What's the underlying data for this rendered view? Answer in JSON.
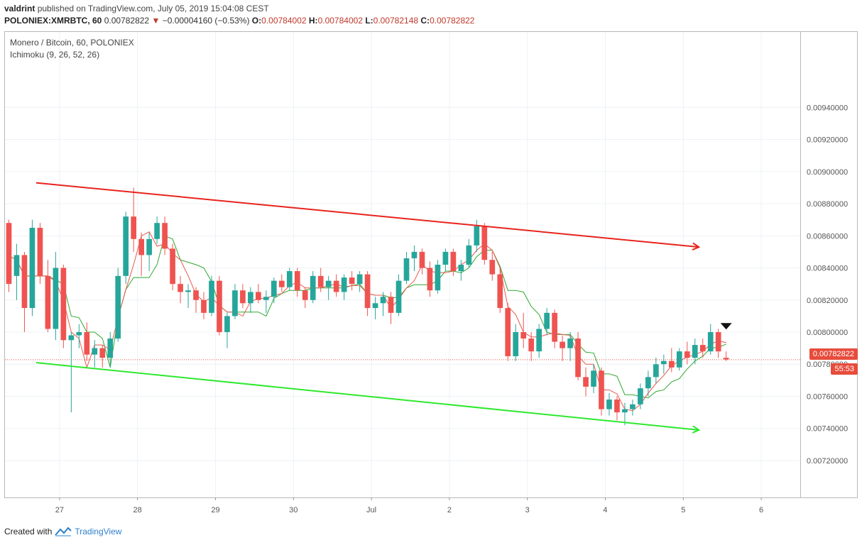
{
  "header": {
    "author": "valdrint",
    "published_text": "published on TradingView.com, July 05, 2019 15:04:08 CEST",
    "symbol": "POLONIEX:XMRBTC, 60",
    "last": "0.00782822",
    "change": "−0.00004160 (−0.53%)",
    "o_label": "O:",
    "o_value": "0.00784002",
    "h_label": "H:",
    "h_value": "0.00784002",
    "l_label": "L:",
    "l_value": "0.00782148",
    "c_label": "C:",
    "c_value": "0.00782822"
  },
  "legend": {
    "pair": "Monero / Bitcoin, 60, POLONIEX",
    "indicator": "Ichimoku (9, 26, 52, 26)"
  },
  "price_tag": {
    "value": "0.00782822",
    "countdown": "55:53",
    "color": "#e74c3c"
  },
  "footer": {
    "created_with": "Created with",
    "brand": "TradingView"
  },
  "colors": {
    "up": "#26a69a",
    "down": "#ef5350",
    "resistance": "#e8231d",
    "support": "#2ee82e",
    "conversion": "#e8584d",
    "base": "#2fa82f",
    "grid": "#edf1f6",
    "axis_text": "#555555"
  },
  "chart_data": {
    "type": "candlestick",
    "y_ticks": [
      "0.00720000",
      "0.00740000",
      "0.00760000",
      "0.00780000",
      "0.00800000",
      "0.00820000",
      "0.00840000",
      "0.00860000",
      "0.00880000",
      "0.00900000",
      "0.00920000",
      "0.00940000"
    ],
    "x_ticks": [
      "27",
      "28",
      "29",
      "30",
      "Jul",
      "2",
      "3",
      "4",
      "5",
      "6"
    ],
    "ylim": [
      0.00697,
      0.00987
    ],
    "x_domain_days": [
      26.3,
      36.5
    ],
    "x_ticks_days": [
      27,
      28,
      29,
      30,
      31,
      32,
      33,
      34,
      35,
      36
    ],
    "resistance_line": {
      "from": [
        26.7,
        0.00893
      ],
      "to": [
        35.2,
        0.00853
      ]
    },
    "support_line": {
      "from": [
        26.7,
        0.00781
      ],
      "to": [
        35.2,
        0.00739
      ]
    },
    "current_price": 0.00782822,
    "marker": {
      "x": 35.55,
      "y": 0.00803,
      "shape": "down-triangle"
    },
    "candles": [
      {
        "x": 26.35,
        "o": 0.00868,
        "h": 0.0087,
        "l": 0.00825,
        "c": 0.0083
      },
      {
        "x": 26.45,
        "o": 0.00835,
        "h": 0.00855,
        "l": 0.0082,
        "c": 0.00848
      },
      {
        "x": 26.55,
        "o": 0.00848,
        "h": 0.0085,
        "l": 0.008,
        "c": 0.00815
      },
      {
        "x": 26.65,
        "o": 0.00815,
        "h": 0.0087,
        "l": 0.0081,
        "c": 0.00865
      },
      {
        "x": 26.75,
        "o": 0.00865,
        "h": 0.00868,
        "l": 0.0083,
        "c": 0.00835
      },
      {
        "x": 26.85,
        "o": 0.00835,
        "h": 0.00845,
        "l": 0.008,
        "c": 0.00802
      },
      {
        "x": 26.95,
        "o": 0.00802,
        "h": 0.0085,
        "l": 0.00795,
        "c": 0.0084
      },
      {
        "x": 27.05,
        "o": 0.0084,
        "h": 0.00842,
        "l": 0.0079,
        "c": 0.00795
      },
      {
        "x": 27.15,
        "o": 0.00795,
        "h": 0.008,
        "l": 0.0075,
        "c": 0.00798
      },
      {
        "x": 27.25,
        "o": 0.00798,
        "h": 0.00805,
        "l": 0.0079,
        "c": 0.008
      },
      {
        "x": 27.35,
        "o": 0.008,
        "h": 0.00806,
        "l": 0.00782,
        "c": 0.00786
      },
      {
        "x": 27.45,
        "o": 0.00786,
        "h": 0.00795,
        "l": 0.00778,
        "c": 0.0079
      },
      {
        "x": 27.55,
        "o": 0.0079,
        "h": 0.00792,
        "l": 0.00778,
        "c": 0.00784
      },
      {
        "x": 27.65,
        "o": 0.00784,
        "h": 0.008,
        "l": 0.00778,
        "c": 0.00796
      },
      {
        "x": 27.75,
        "o": 0.00796,
        "h": 0.0084,
        "l": 0.00794,
        "c": 0.00835
      },
      {
        "x": 27.85,
        "o": 0.00835,
        "h": 0.00875,
        "l": 0.0083,
        "c": 0.00872
      },
      {
        "x": 27.95,
        "o": 0.00872,
        "h": 0.0089,
        "l": 0.0085,
        "c": 0.00858
      },
      {
        "x": 28.05,
        "o": 0.00858,
        "h": 0.00862,
        "l": 0.00835,
        "c": 0.00848
      },
      {
        "x": 28.15,
        "o": 0.00848,
        "h": 0.00862,
        "l": 0.00838,
        "c": 0.00858
      },
      {
        "x": 28.25,
        "o": 0.00858,
        "h": 0.00872,
        "l": 0.00855,
        "c": 0.00868
      },
      {
        "x": 28.35,
        "o": 0.00868,
        "h": 0.00872,
        "l": 0.00848,
        "c": 0.00852
      },
      {
        "x": 28.45,
        "o": 0.00852,
        "h": 0.00855,
        "l": 0.00826,
        "c": 0.0083
      },
      {
        "x": 28.55,
        "o": 0.0083,
        "h": 0.00835,
        "l": 0.00818,
        "c": 0.00825
      },
      {
        "x": 28.65,
        "o": 0.00825,
        "h": 0.0083,
        "l": 0.00815,
        "c": 0.00826
      },
      {
        "x": 28.75,
        "o": 0.00826,
        "h": 0.00828,
        "l": 0.00812,
        "c": 0.0082
      },
      {
        "x": 28.85,
        "o": 0.0082,
        "h": 0.00825,
        "l": 0.00808,
        "c": 0.00812
      },
      {
        "x": 28.95,
        "o": 0.00812,
        "h": 0.00835,
        "l": 0.0081,
        "c": 0.00832
      },
      {
        "x": 29.05,
        "o": 0.00832,
        "h": 0.00835,
        "l": 0.00798,
        "c": 0.008
      },
      {
        "x": 29.15,
        "o": 0.008,
        "h": 0.00812,
        "l": 0.0079,
        "c": 0.0081
      },
      {
        "x": 29.25,
        "o": 0.0081,
        "h": 0.0083,
        "l": 0.00808,
        "c": 0.00826
      },
      {
        "x": 29.35,
        "o": 0.00826,
        "h": 0.0083,
        "l": 0.00815,
        "c": 0.00818
      },
      {
        "x": 29.45,
        "o": 0.00818,
        "h": 0.00828,
        "l": 0.00812,
        "c": 0.00825
      },
      {
        "x": 29.55,
        "o": 0.00825,
        "h": 0.0083,
        "l": 0.00818,
        "c": 0.0082
      },
      {
        "x": 29.65,
        "o": 0.0082,
        "h": 0.00826,
        "l": 0.00812,
        "c": 0.00822
      },
      {
        "x": 29.75,
        "o": 0.00822,
        "h": 0.00834,
        "l": 0.00818,
        "c": 0.00832
      },
      {
        "x": 29.85,
        "o": 0.00832,
        "h": 0.00836,
        "l": 0.00825,
        "c": 0.00828
      },
      {
        "x": 29.95,
        "o": 0.00828,
        "h": 0.0084,
        "l": 0.00826,
        "c": 0.00838
      },
      {
        "x": 30.05,
        "o": 0.00838,
        "h": 0.0084,
        "l": 0.00822,
        "c": 0.00826
      },
      {
        "x": 30.15,
        "o": 0.00826,
        "h": 0.00828,
        "l": 0.00815,
        "c": 0.0082
      },
      {
        "x": 30.25,
        "o": 0.0082,
        "h": 0.00838,
        "l": 0.00818,
        "c": 0.00835
      },
      {
        "x": 30.35,
        "o": 0.00835,
        "h": 0.0084,
        "l": 0.00825,
        "c": 0.00828
      },
      {
        "x": 30.45,
        "o": 0.00828,
        "h": 0.00835,
        "l": 0.0082,
        "c": 0.00832
      },
      {
        "x": 30.55,
        "o": 0.00832,
        "h": 0.00836,
        "l": 0.00822,
        "c": 0.00825
      },
      {
        "x": 30.65,
        "o": 0.00825,
        "h": 0.00836,
        "l": 0.0082,
        "c": 0.00834
      },
      {
        "x": 30.75,
        "o": 0.00834,
        "h": 0.00838,
        "l": 0.00826,
        "c": 0.0083
      },
      {
        "x": 30.85,
        "o": 0.0083,
        "h": 0.00838,
        "l": 0.00825,
        "c": 0.00836
      },
      {
        "x": 30.95,
        "o": 0.00836,
        "h": 0.00838,
        "l": 0.0081,
        "c": 0.00815
      },
      {
        "x": 31.05,
        "o": 0.00815,
        "h": 0.00822,
        "l": 0.00808,
        "c": 0.00818
      },
      {
        "x": 31.15,
        "o": 0.00818,
        "h": 0.00825,
        "l": 0.0081,
        "c": 0.00822
      },
      {
        "x": 31.25,
        "o": 0.00822,
        "h": 0.00825,
        "l": 0.00805,
        "c": 0.00812
      },
      {
        "x": 31.35,
        "o": 0.00812,
        "h": 0.00836,
        "l": 0.0081,
        "c": 0.00832
      },
      {
        "x": 31.45,
        "o": 0.00832,
        "h": 0.0085,
        "l": 0.0083,
        "c": 0.00846
      },
      {
        "x": 31.55,
        "o": 0.00846,
        "h": 0.00854,
        "l": 0.00838,
        "c": 0.0085
      },
      {
        "x": 31.65,
        "o": 0.0085,
        "h": 0.00852,
        "l": 0.00836,
        "c": 0.0084
      },
      {
        "x": 31.75,
        "o": 0.0084,
        "h": 0.00844,
        "l": 0.00822,
        "c": 0.00826
      },
      {
        "x": 31.85,
        "o": 0.00826,
        "h": 0.00845,
        "l": 0.00824,
        "c": 0.00842
      },
      {
        "x": 31.95,
        "o": 0.00842,
        "h": 0.00852,
        "l": 0.00838,
        "c": 0.0085
      },
      {
        "x": 32.05,
        "o": 0.0085,
        "h": 0.00852,
        "l": 0.00835,
        "c": 0.00838
      },
      {
        "x": 32.15,
        "o": 0.00838,
        "h": 0.00845,
        "l": 0.00832,
        "c": 0.00842
      },
      {
        "x": 32.25,
        "o": 0.00842,
        "h": 0.00858,
        "l": 0.0084,
        "c": 0.00854
      },
      {
        "x": 32.35,
        "o": 0.00854,
        "h": 0.0087,
        "l": 0.0085,
        "c": 0.00866
      },
      {
        "x": 32.45,
        "o": 0.00866,
        "h": 0.00868,
        "l": 0.00842,
        "c": 0.00845
      },
      {
        "x": 32.55,
        "o": 0.00845,
        "h": 0.0085,
        "l": 0.00832,
        "c": 0.00836
      },
      {
        "x": 32.65,
        "o": 0.00836,
        "h": 0.0084,
        "l": 0.00812,
        "c": 0.00815
      },
      {
        "x": 32.75,
        "o": 0.00815,
        "h": 0.00818,
        "l": 0.00782,
        "c": 0.00785
      },
      {
        "x": 32.85,
        "o": 0.00785,
        "h": 0.00805,
        "l": 0.00782,
        "c": 0.008
      },
      {
        "x": 32.95,
        "o": 0.008,
        "h": 0.00812,
        "l": 0.0079,
        "c": 0.00796
      },
      {
        "x": 33.05,
        "o": 0.00796,
        "h": 0.008,
        "l": 0.00782,
        "c": 0.00788
      },
      {
        "x": 33.15,
        "o": 0.00788,
        "h": 0.00805,
        "l": 0.00784,
        "c": 0.00802
      },
      {
        "x": 33.25,
        "o": 0.00802,
        "h": 0.00815,
        "l": 0.00798,
        "c": 0.00812
      },
      {
        "x": 33.35,
        "o": 0.00812,
        "h": 0.00814,
        "l": 0.0079,
        "c": 0.00794
      },
      {
        "x": 33.45,
        "o": 0.00794,
        "h": 0.00798,
        "l": 0.00782,
        "c": 0.0079
      },
      {
        "x": 33.55,
        "o": 0.0079,
        "h": 0.008,
        "l": 0.00782,
        "c": 0.00796
      },
      {
        "x": 33.65,
        "o": 0.00796,
        "h": 0.008,
        "l": 0.0077,
        "c": 0.00772
      },
      {
        "x": 33.75,
        "o": 0.00772,
        "h": 0.00778,
        "l": 0.0076,
        "c": 0.00766
      },
      {
        "x": 33.85,
        "o": 0.00766,
        "h": 0.0078,
        "l": 0.00762,
        "c": 0.00776
      },
      {
        "x": 33.95,
        "o": 0.00776,
        "h": 0.00778,
        "l": 0.00748,
        "c": 0.00752
      },
      {
        "x": 34.05,
        "o": 0.00752,
        "h": 0.00762,
        "l": 0.00748,
        "c": 0.00758
      },
      {
        "x": 34.15,
        "o": 0.00758,
        "h": 0.0076,
        "l": 0.00745,
        "c": 0.0075
      },
      {
        "x": 34.25,
        "o": 0.0075,
        "h": 0.00756,
        "l": 0.00742,
        "c": 0.00752
      },
      {
        "x": 34.35,
        "o": 0.00752,
        "h": 0.00758,
        "l": 0.00748,
        "c": 0.00755
      },
      {
        "x": 34.45,
        "o": 0.00755,
        "h": 0.00768,
        "l": 0.00752,
        "c": 0.00765
      },
      {
        "x": 34.55,
        "o": 0.00765,
        "h": 0.00776,
        "l": 0.0076,
        "c": 0.00772
      },
      {
        "x": 34.65,
        "o": 0.00772,
        "h": 0.00784,
        "l": 0.00768,
        "c": 0.0078
      },
      {
        "x": 34.75,
        "o": 0.0078,
        "h": 0.00786,
        "l": 0.00774,
        "c": 0.00782
      },
      {
        "x": 34.85,
        "o": 0.00782,
        "h": 0.0079,
        "l": 0.00775,
        "c": 0.00778
      },
      {
        "x": 34.95,
        "o": 0.00778,
        "h": 0.0079,
        "l": 0.00776,
        "c": 0.00788
      },
      {
        "x": 35.05,
        "o": 0.00788,
        "h": 0.00794,
        "l": 0.0078,
        "c": 0.00784
      },
      {
        "x": 35.15,
        "o": 0.00784,
        "h": 0.00796,
        "l": 0.0078,
        "c": 0.00792
      },
      {
        "x": 35.25,
        "o": 0.00792,
        "h": 0.00796,
        "l": 0.00784,
        "c": 0.00788
      },
      {
        "x": 35.35,
        "o": 0.00788,
        "h": 0.00805,
        "l": 0.00786,
        "c": 0.008
      },
      {
        "x": 35.45,
        "o": 0.008,
        "h": 0.00802,
        "l": 0.00784,
        "c": 0.00788
      },
      {
        "x": 35.55,
        "o": 0.00784,
        "h": 0.00788,
        "l": 0.00782,
        "c": 0.00783
      }
    ]
  }
}
